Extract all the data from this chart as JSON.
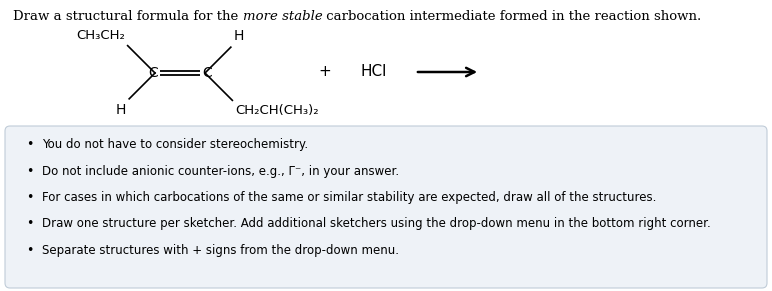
{
  "title_part1": "Draw a structural formula for the ",
  "title_italic": "more stable",
  "title_part2": " carbocation intermediate formed in the reaction shown.",
  "bg_color": "#ffffff",
  "box_bg_color": "#eef2f7",
  "box_edge_color": "#c0ccd8",
  "bullet_points": [
    "You do not have to consider stereochemistry.",
    "Do not include anionic counter-ions, e.g., Γ⁻, in your answer.",
    "For cases in which carbocations of the same or similar stability are expected, draw all of the structures.",
    "Draw one structure per sketcher. Add additional sketchers using the drop-down menu in the bottom right corner.",
    "Separate structures with + signs from the drop-down menu."
  ],
  "fs_title": 9.5,
  "fs_body": 8.5,
  "fs_chem": 10.0
}
